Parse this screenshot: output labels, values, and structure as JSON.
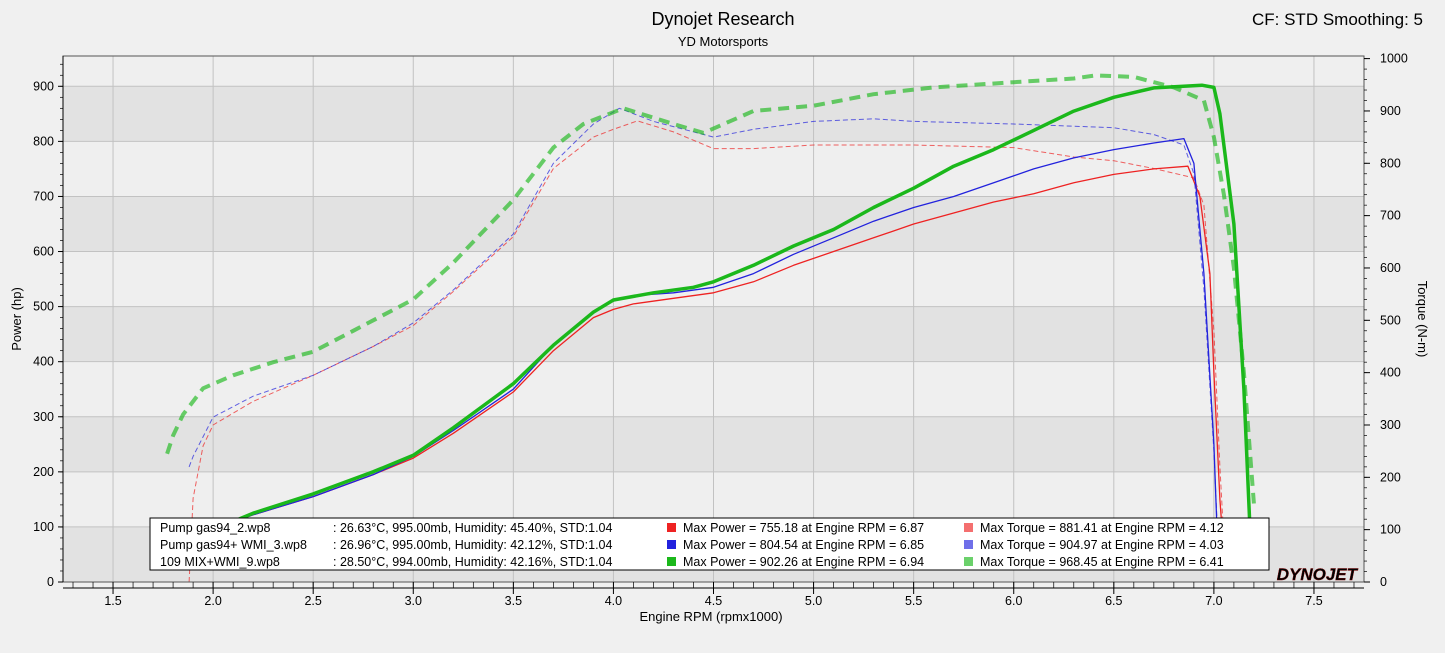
{
  "header": {
    "title": "Dynojet Research",
    "subtitle": "YD Motorsports",
    "corner": "CF: STD Smoothing: 5"
  },
  "watermark": "DYNOJET",
  "colors": {
    "red": "#ee2222",
    "blue": "#2222dd",
    "green": "#1bb81b",
    "plot_bg_a": "#e2e2e2",
    "plot_bg_b": "#efefef"
  },
  "chart_data": {
    "type": "line",
    "xlabel": "Engine RPM (rpmx1000)",
    "ylabel_left": "Power (hp)",
    "ylabel_right": "Torque (N-m)",
    "xlim": [
      1.25,
      7.75
    ],
    "ylim_left": [
      0,
      955
    ],
    "ylim_right": [
      0,
      1005
    ],
    "xticks": [
      "1.5",
      "2.0",
      "2.5",
      "3.0",
      "3.5",
      "4.0",
      "4.5",
      "5.0",
      "5.5",
      "6.0",
      "6.5",
      "7.0",
      "7.5"
    ],
    "yticks_left": [
      "0",
      "100",
      "200",
      "300",
      "400",
      "500",
      "600",
      "700",
      "800",
      "900"
    ],
    "yticks_right": [
      "0",
      "100",
      "200",
      "300",
      "400",
      "500",
      "600",
      "700",
      "800",
      "900",
      "1000"
    ],
    "grid": true,
    "legend_position": "bottom",
    "series": [
      {
        "name": "Pump gas94_2.wp8",
        "run_info": ": 26.63°C, 995.00mb, Humidity: 45.40%, STD:1.04",
        "max_power": "Max Power = 755.18 at Engine RPM = 6.87",
        "max_torque": "Max Torque = 881.41 at Engine RPM = 4.12",
        "color": "red",
        "power": [
          [
            1.9,
            75
          ],
          [
            2.0,
            95
          ],
          [
            2.2,
            122
          ],
          [
            2.5,
            155
          ],
          [
            2.8,
            195
          ],
          [
            3.0,
            225
          ],
          [
            3.2,
            270
          ],
          [
            3.5,
            345
          ],
          [
            3.7,
            420
          ],
          [
            3.9,
            480
          ],
          [
            4.0,
            495
          ],
          [
            4.1,
            505
          ],
          [
            4.3,
            515
          ],
          [
            4.5,
            525
          ],
          [
            4.7,
            545
          ],
          [
            4.9,
            575
          ],
          [
            5.1,
            600
          ],
          [
            5.3,
            625
          ],
          [
            5.5,
            650
          ],
          [
            5.7,
            670
          ],
          [
            5.9,
            690
          ],
          [
            6.1,
            705
          ],
          [
            6.3,
            725
          ],
          [
            6.5,
            740
          ],
          [
            6.7,
            750
          ],
          [
            6.87,
            755
          ],
          [
            6.93,
            700
          ],
          [
            6.98,
            560
          ],
          [
            7.0,
            380
          ],
          [
            7.03,
            150
          ],
          [
            7.05,
            50
          ]
        ],
        "torque": [
          [
            1.88,
            0
          ],
          [
            1.89,
            80
          ],
          [
            1.9,
            160
          ],
          [
            1.95,
            260
          ],
          [
            2.0,
            300
          ],
          [
            2.2,
            345
          ],
          [
            2.5,
            395
          ],
          [
            2.8,
            450
          ],
          [
            3.0,
            490
          ],
          [
            3.2,
            555
          ],
          [
            3.5,
            660
          ],
          [
            3.7,
            790
          ],
          [
            3.9,
            850
          ],
          [
            4.0,
            865
          ],
          [
            4.12,
            881
          ],
          [
            4.3,
            860
          ],
          [
            4.5,
            828
          ],
          [
            4.7,
            828
          ],
          [
            5.0,
            835
          ],
          [
            5.5,
            835
          ],
          [
            6.0,
            830
          ],
          [
            6.3,
            812
          ],
          [
            6.5,
            805
          ],
          [
            6.7,
            790
          ],
          [
            6.9,
            772
          ],
          [
            6.95,
            720
          ],
          [
            7.0,
            480
          ],
          [
            7.03,
            220
          ],
          [
            7.05,
            80
          ]
        ]
      },
      {
        "name": "Pump gas94+ WMI_3.wp8",
        "run_info": ": 26.96°C, 995.00mb, Humidity: 42.12%, STD:1.04",
        "max_power": "Max Power = 804.54 at Engine RPM = 6.85",
        "max_torque": "Max Torque = 904.97 at Engine RPM = 4.03",
        "color": "blue",
        "power": [
          [
            1.9,
            75
          ],
          [
            2.0,
            95
          ],
          [
            2.2,
            122
          ],
          [
            2.5,
            155
          ],
          [
            2.8,
            195
          ],
          [
            3.0,
            228
          ],
          [
            3.2,
            275
          ],
          [
            3.5,
            350
          ],
          [
            3.7,
            430
          ],
          [
            3.9,
            490
          ],
          [
            4.0,
            510
          ],
          [
            4.1,
            520
          ],
          [
            4.3,
            525
          ],
          [
            4.5,
            535
          ],
          [
            4.7,
            560
          ],
          [
            4.9,
            595
          ],
          [
            5.1,
            625
          ],
          [
            5.3,
            655
          ],
          [
            5.5,
            680
          ],
          [
            5.7,
            700
          ],
          [
            5.9,
            725
          ],
          [
            6.1,
            750
          ],
          [
            6.3,
            770
          ],
          [
            6.5,
            785
          ],
          [
            6.7,
            797
          ],
          [
            6.85,
            805
          ],
          [
            6.9,
            760
          ],
          [
            6.95,
            560
          ],
          [
            7.0,
            250
          ],
          [
            7.02,
            50
          ]
        ],
        "torque": [
          [
            1.88,
            220
          ],
          [
            1.9,
            240
          ],
          [
            2.0,
            315
          ],
          [
            2.2,
            355
          ],
          [
            2.5,
            395
          ],
          [
            2.8,
            450
          ],
          [
            3.0,
            495
          ],
          [
            3.2,
            558
          ],
          [
            3.5,
            665
          ],
          [
            3.7,
            800
          ],
          [
            3.9,
            875
          ],
          [
            4.03,
            905
          ],
          [
            4.2,
            880
          ],
          [
            4.5,
            850
          ],
          [
            4.7,
            865
          ],
          [
            5.0,
            880
          ],
          [
            5.3,
            885
          ],
          [
            5.5,
            880
          ],
          [
            6.0,
            875
          ],
          [
            6.5,
            868
          ],
          [
            6.7,
            855
          ],
          [
            6.85,
            835
          ],
          [
            6.9,
            780
          ],
          [
            6.95,
            560
          ],
          [
            7.0,
            250
          ],
          [
            7.02,
            80
          ]
        ]
      },
      {
        "name": "109 MIX+WMI_9.wp8",
        "run_info": ": 28.50°C, 994.00mb, Humidity: 42.16%, STD:1.04",
        "max_power": "Max Power = 902.26 at Engine RPM = 6.94",
        "max_torque": "Max Torque = 968.45 at Engine RPM = 6.41",
        "color": "green",
        "power": [
          [
            2.0,
            95
          ],
          [
            2.2,
            125
          ],
          [
            2.5,
            160
          ],
          [
            2.8,
            200
          ],
          [
            3.0,
            230
          ],
          [
            3.2,
            280
          ],
          [
            3.5,
            360
          ],
          [
            3.7,
            430
          ],
          [
            3.9,
            490
          ],
          [
            4.0,
            512
          ],
          [
            4.2,
            525
          ],
          [
            4.4,
            535
          ],
          [
            4.5,
            545
          ],
          [
            4.7,
            575
          ],
          [
            4.9,
            610
          ],
          [
            5.1,
            640
          ],
          [
            5.3,
            680
          ],
          [
            5.5,
            715
          ],
          [
            5.7,
            755
          ],
          [
            5.9,
            785
          ],
          [
            6.1,
            820
          ],
          [
            6.3,
            855
          ],
          [
            6.5,
            880
          ],
          [
            6.7,
            897
          ],
          [
            6.94,
            902
          ],
          [
            7.0,
            898
          ],
          [
            7.03,
            850
          ],
          [
            7.1,
            650
          ],
          [
            7.15,
            350
          ],
          [
            7.18,
            100
          ],
          [
            7.19,
            40
          ]
        ],
        "torque": [
          [
            1.77,
            245
          ],
          [
            1.8,
            280
          ],
          [
            1.85,
            320
          ],
          [
            1.95,
            370
          ],
          [
            2.1,
            395
          ],
          [
            2.3,
            420
          ],
          [
            2.5,
            440
          ],
          [
            2.7,
            480
          ],
          [
            3.0,
            540
          ],
          [
            3.2,
            610
          ],
          [
            3.5,
            730
          ],
          [
            3.7,
            830
          ],
          [
            3.85,
            875
          ],
          [
            4.05,
            905
          ],
          [
            4.3,
            875
          ],
          [
            4.45,
            858
          ],
          [
            4.7,
            900
          ],
          [
            5.0,
            910
          ],
          [
            5.3,
            932
          ],
          [
            5.6,
            945
          ],
          [
            6.0,
            955
          ],
          [
            6.3,
            962
          ],
          [
            6.41,
            968
          ],
          [
            6.6,
            965
          ],
          [
            6.8,
            945
          ],
          [
            6.95,
            920
          ],
          [
            7.0,
            850
          ],
          [
            7.05,
            740
          ],
          [
            7.1,
            600
          ],
          [
            7.15,
            400
          ],
          [
            7.2,
            150
          ]
        ]
      }
    ]
  }
}
